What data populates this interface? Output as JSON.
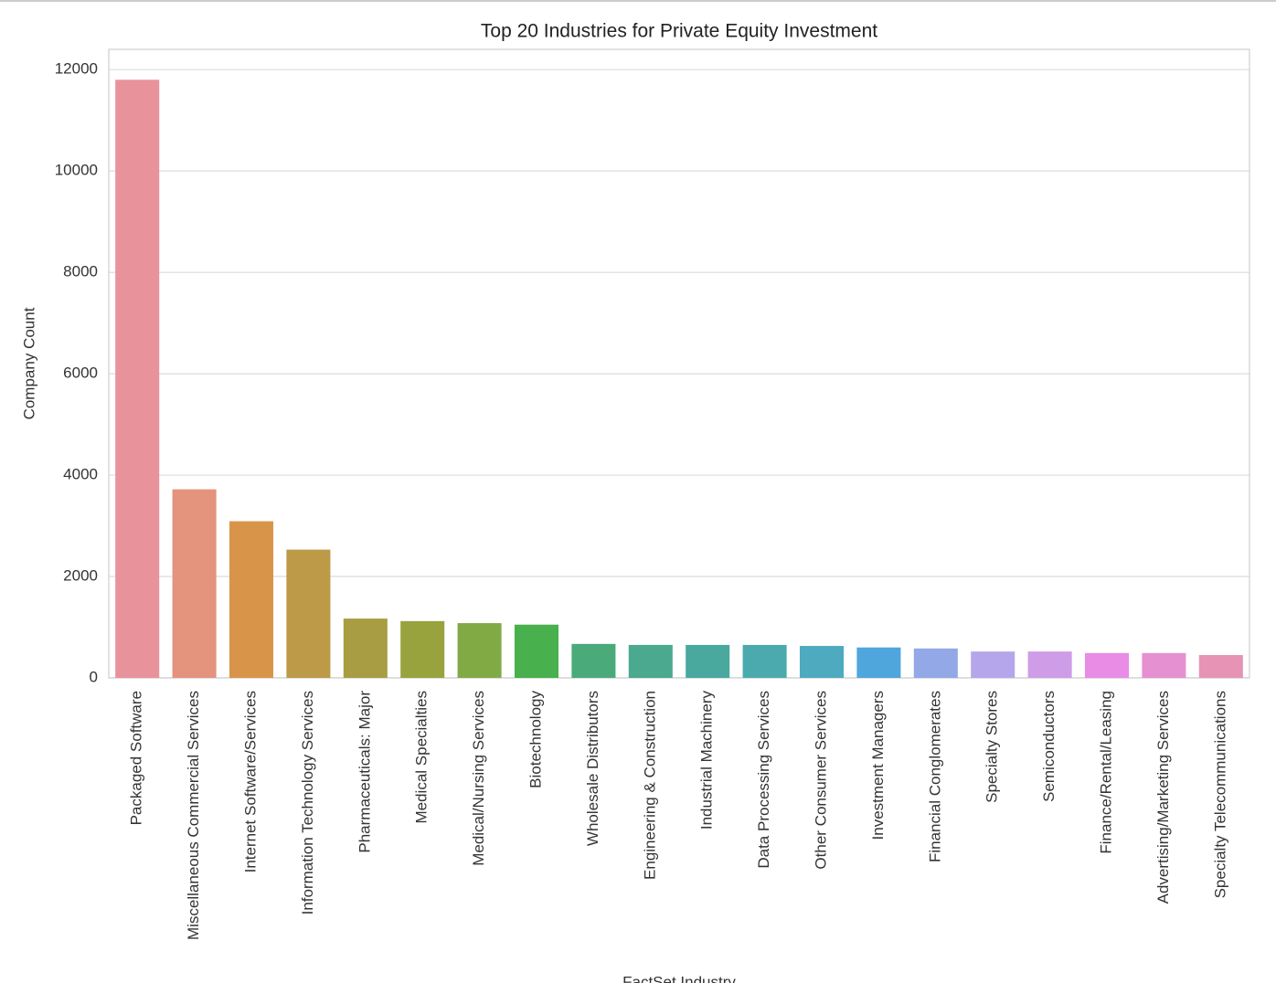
{
  "chart_data": {
    "type": "bar",
    "title": "Top 20 Industries for Private Equity Investment",
    "x_label": "FactSet Industry",
    "y_label": "Company Count",
    "categories": [
      "Packaged Software",
      "Miscellaneous Commercial Services",
      "Internet Software/Services",
      "Information Technology Services",
      "Pharmaceuticals: Major",
      "Medical Specialties",
      "Medical/Nursing Services",
      "Biotechnology",
      "Wholesale Distributors",
      "Engineering & Construction",
      "Industrial Machinery",
      "Data Processing Services",
      "Other Consumer Services",
      "Investment Managers",
      "Financial Conglomerates",
      "Specialty Stores",
      "Semiconductors",
      "Finance/Rental/Leasing",
      "Advertising/Marketing Services",
      "Specialty Telecommunications"
    ],
    "values": [
      11800,
      3720,
      3090,
      2530,
      1170,
      1120,
      1080,
      1050,
      670,
      650,
      650,
      650,
      630,
      600,
      580,
      520,
      520,
      490,
      490,
      450
    ],
    "colors": [
      "#e8929c",
      "#e4937c",
      "#d8954a",
      "#bd9a47",
      "#a89d42",
      "#98a33e",
      "#82aa44",
      "#48b04c",
      "#4aaa7a",
      "#4aa98f",
      "#49a99e",
      "#4baaae",
      "#4daabf",
      "#4fa6dc",
      "#93a8e6",
      "#b5a6ec",
      "#cf9ce8",
      "#e88ce6",
      "#e590d0",
      "#e693b5"
    ],
    "ylim": [
      0,
      12400
    ],
    "yticks": [
      0,
      2000,
      4000,
      6000,
      8000,
      10000,
      12000
    ],
    "grid": true
  }
}
